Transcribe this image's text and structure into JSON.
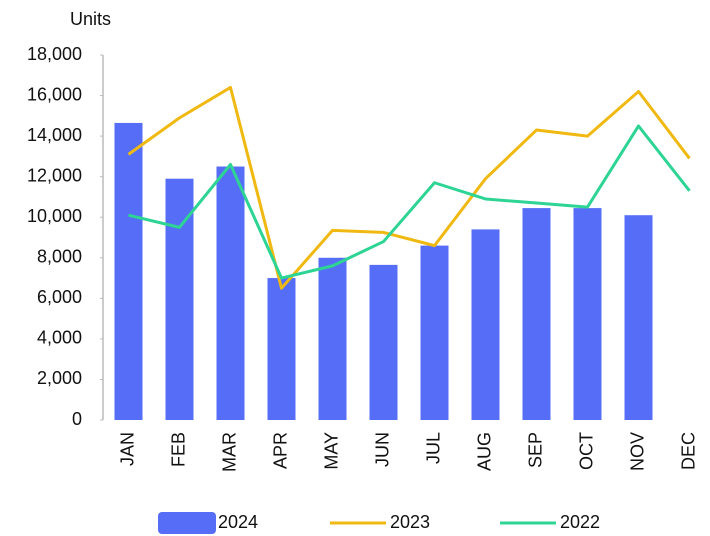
{
  "chart_data": {
    "type": "bar_line",
    "y_label": "Units",
    "categories": [
      "JAN",
      "FEB",
      "MAR",
      "APR",
      "MAY",
      "JUN",
      "JUL",
      "AUG",
      "SEP",
      "OCT",
      "NOV",
      "DEC"
    ],
    "series": [
      {
        "name": "2024",
        "type": "bar",
        "color": "#566ef7",
        "values": [
          14650,
          11900,
          12500,
          7000,
          8000,
          7650,
          8600,
          9400,
          10450,
          10450,
          10100,
          null
        ]
      },
      {
        "name": "2023",
        "type": "line",
        "color": "#f0b912",
        "values": [
          13100,
          14900,
          16400,
          6500,
          9350,
          9250,
          8600,
          11900,
          14300,
          14000,
          16200,
          12900
        ]
      },
      {
        "name": "2022",
        "type": "line",
        "color": "#2dd494",
        "values": [
          10100,
          9500,
          12600,
          7000,
          7600,
          8800,
          11700,
          10900,
          10700,
          10500,
          14500,
          11300
        ]
      }
    ],
    "ylim": [
      0,
      18000
    ],
    "yticks": [
      0,
      {
        "value": 2000,
        "label": "2,000"
      },
      {
        "value": 4000,
        "label": "4,000"
      },
      {
        "value": 6000,
        "label": "6,000"
      },
      {
        "value": 8000,
        "label": "8,000"
      },
      {
        "value": 10000,
        "label": "10,000"
      },
      {
        "value": 12000,
        "label": "12,000"
      },
      {
        "value": 14000,
        "label": "14,000"
      },
      {
        "value": 16000,
        "label": "16,000"
      },
      {
        "value": 18000,
        "label": "18,000"
      }
    ],
    "grid": false,
    "legend": "bottom"
  }
}
